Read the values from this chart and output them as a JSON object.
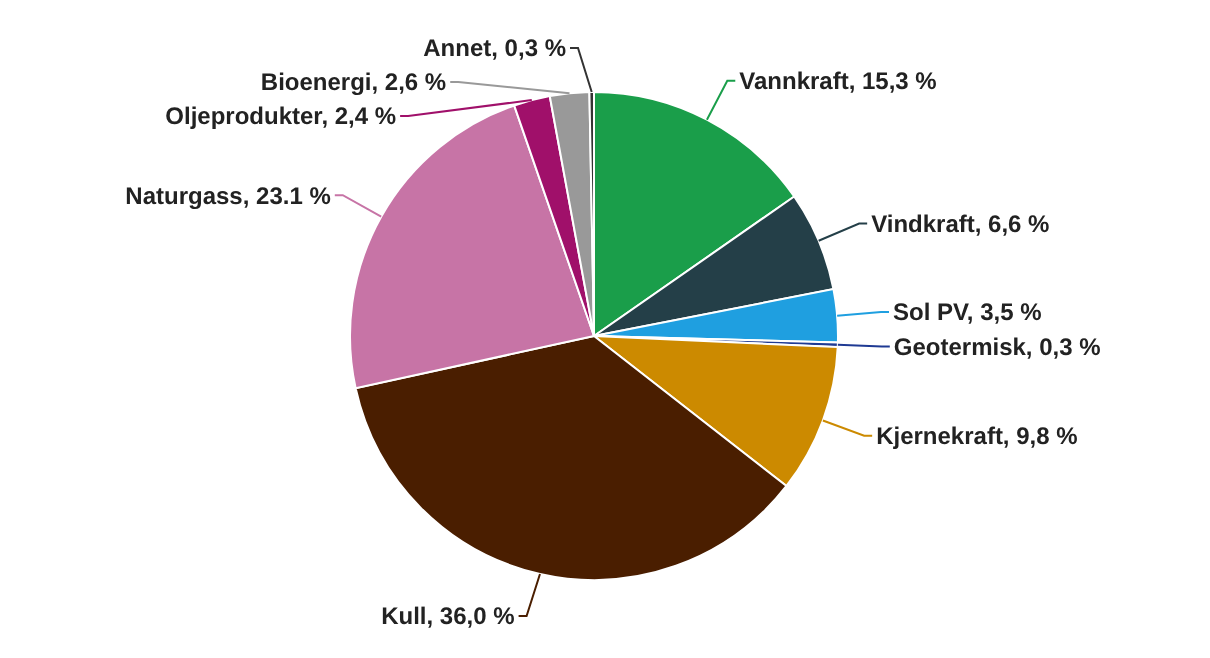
{
  "chart_data": {
    "type": "pie",
    "categories": [
      "Vannkraft",
      "Vindkraft",
      "Sol PV",
      "Geotermisk",
      "Kjernekraft",
      "Kull",
      "Naturgass",
      "Oljeprodukter",
      "Bioenergi",
      "Annet"
    ],
    "values": [
      15.3,
      6.6,
      3.5,
      0.3,
      9.8,
      36.0,
      23.1,
      2.4,
      2.6,
      0.3
    ],
    "value_labels": [
      "15,3 %",
      "6,6 %",
      "3,5 %",
      "0,3 %",
      "9,8 %",
      "36,0 %",
      "23.1 %",
      "2,4 %",
      "2,6 %",
      "0,3 %"
    ],
    "colors": [
      "#1a9e4a",
      "#243f48",
      "#1f9fe0",
      "#1f3a93",
      "#cc8a00",
      "#4a1e00",
      "#c774a6",
      "#a0106a",
      "#999999",
      "#333333"
    ]
  }
}
